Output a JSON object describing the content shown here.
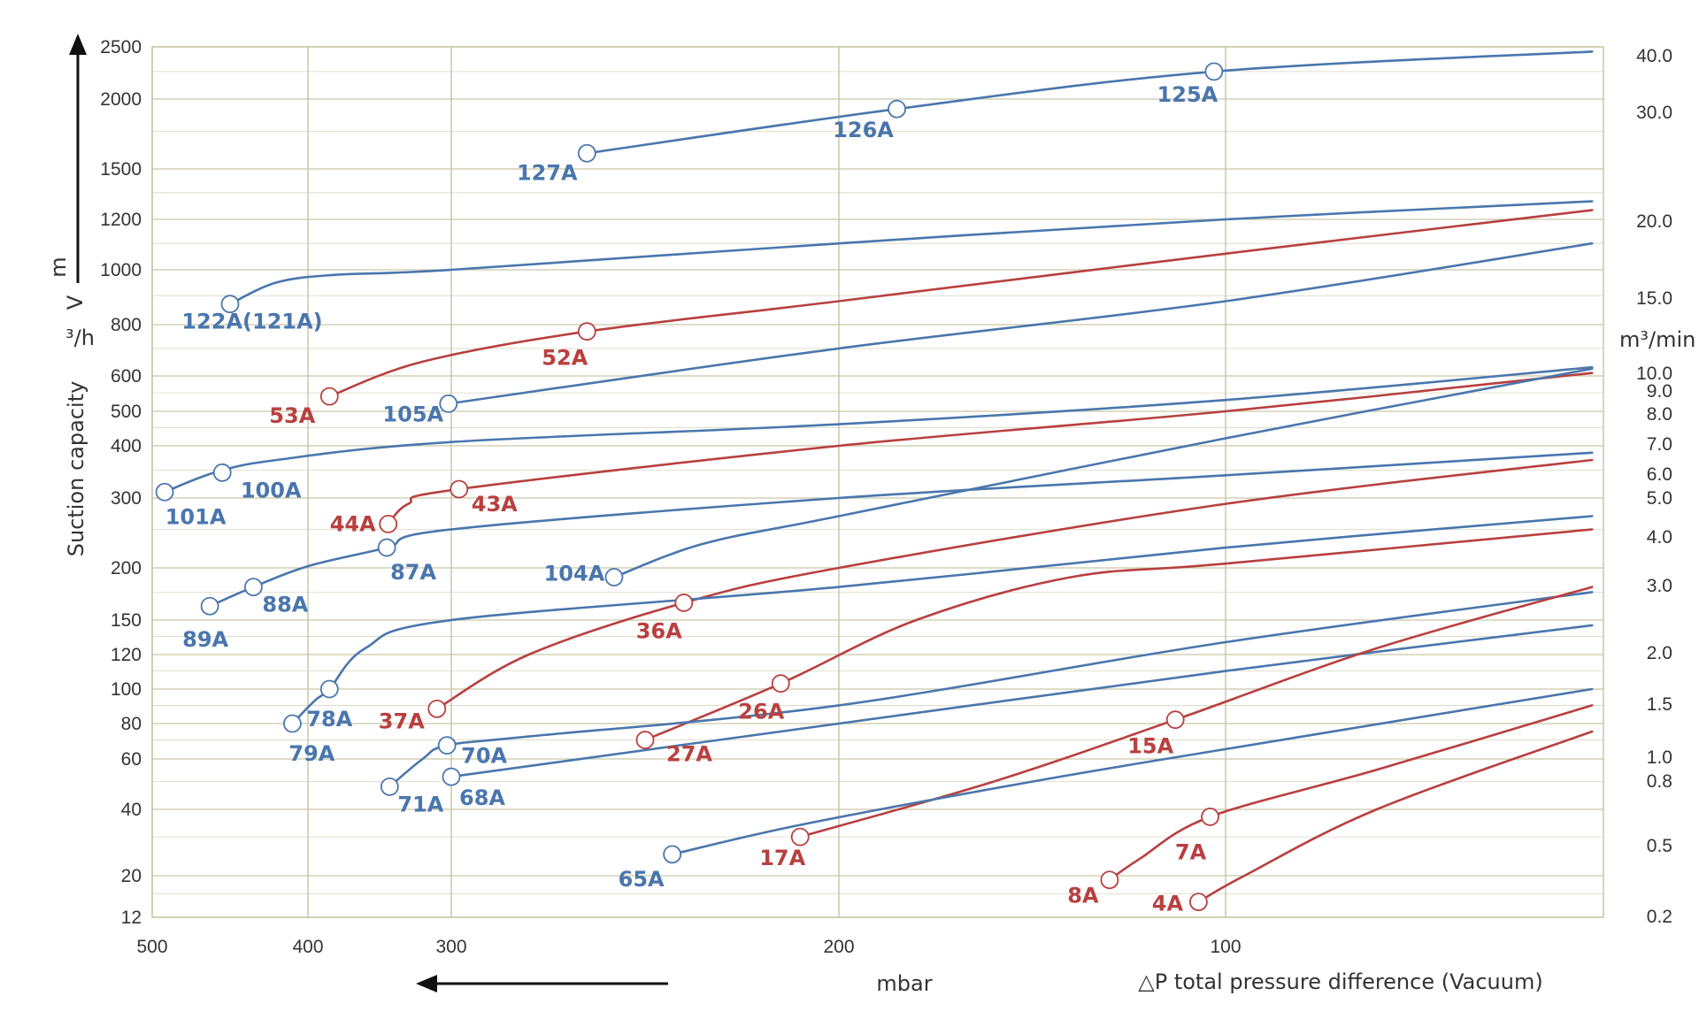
{
  "chart_data": {
    "type": "line",
    "title": "",
    "ylabel_lines": [
      "Suction capacity",
      "V",
      "m",
      "³/h"
    ],
    "ylabel_right": "m³/min",
    "xlabel_unit": "mbar",
    "xlabel": "△P total pressure difference (Vacuum)",
    "x_ticks": [
      500,
      400,
      300,
      200,
      100
    ],
    "y_ticks_left": [
      2500,
      2000,
      1500,
      1200,
      1000,
      800,
      600,
      500,
      400,
      300,
      200,
      150,
      120,
      100,
      80,
      60,
      40,
      20,
      12
    ],
    "y_ticks_right": [
      40.0,
      30.0,
      20.0,
      15.0,
      10.0,
      9.0,
      8.0,
      7.0,
      6.0,
      5.0,
      4.0,
      3.0,
      2.0,
      1.5,
      1.0,
      0.8,
      0.5,
      0.2
    ],
    "y_ticks_right_labels": [
      "40.0",
      "30.0",
      "20.0",
      "15.0",
      "10.0",
      "9.0",
      "8.0",
      "7.0",
      "6.0",
      "5.0",
      "4.0",
      "3.0",
      "2.0",
      "1.5",
      "1.0",
      "0.8",
      "0.5",
      "0.2"
    ],
    "grid": true,
    "colors": {
      "blue": "#4a76ad",
      "red": "#b8403f",
      "grid": "#c9c8a8",
      "axis": "#333333"
    },
    "series": [
      {
        "color": "blue",
        "points": [
          [
            265,
            1600
          ],
          [
            185,
            1920
          ],
          [
            103,
            2250
          ],
          [
            3,
            2450
          ]
        ],
        "markers": [
          {
            "label": "127A",
            "x": 265,
            "y": 1600
          },
          {
            "label": "126A",
            "x": 185,
            "y": 1920
          },
          {
            "label": "125A",
            "x": 103,
            "y": 2250
          }
        ]
      },
      {
        "color": "blue",
        "points": [
          [
            450,
            870
          ],
          [
            420,
            950
          ],
          [
            380,
            980
          ],
          [
            300,
            1000
          ],
          [
            200,
            1100
          ],
          [
            100,
            1200
          ],
          [
            3,
            1300
          ]
        ],
        "markers": [
          {
            "label": "122A(121A)",
            "x": 450,
            "y": 870
          }
        ]
      },
      {
        "color": "red",
        "points": [
          [
            385,
            540
          ],
          [
            320,
            650
          ],
          [
            265,
            770
          ],
          [
            200,
            880
          ],
          [
            100,
            1060
          ],
          [
            3,
            1250
          ]
        ],
        "markers": [
          {
            "label": "53A",
            "x": 385,
            "y": 540
          },
          {
            "label": "52A",
            "x": 265,
            "y": 770
          }
        ]
      },
      {
        "color": "blue",
        "points": [
          [
            302,
            520
          ],
          [
            200,
            700
          ],
          [
            100,
            880
          ],
          [
            3,
            1100
          ]
        ],
        "markers": [
          {
            "label": "105A",
            "x": 302,
            "y": 520
          }
        ]
      },
      {
        "color": "blue",
        "points": [
          [
            492,
            310
          ],
          [
            460,
            345
          ],
          [
            420,
            370
          ],
          [
            300,
            410
          ],
          [
            200,
            460
          ],
          [
            100,
            530
          ],
          [
            3,
            630
          ]
        ],
        "markers": [
          {
            "label": "101A",
            "x": 492,
            "y": 310
          },
          {
            "label": "100A",
            "x": 455,
            "y": 345
          }
        ]
      },
      {
        "color": "red",
        "points": [
          [
            344,
            258
          ],
          [
            330,
            290
          ],
          [
            298,
            315
          ],
          [
            200,
            400
          ],
          [
            100,
            500
          ],
          [
            3,
            610
          ]
        ],
        "markers": [
          {
            "label": "44A",
            "x": 344,
            "y": 258
          },
          {
            "label": "43A",
            "x": 298,
            "y": 315
          }
        ]
      },
      {
        "color": "blue",
        "points": [
          [
            463,
            162
          ],
          [
            435,
            180
          ],
          [
            400,
            202
          ],
          [
            345,
            225
          ],
          [
            300,
            250
          ],
          [
            200,
            300
          ],
          [
            100,
            340
          ],
          [
            3,
            385
          ]
        ],
        "markers": [
          {
            "label": "89A",
            "x": 463,
            "y": 162
          },
          {
            "label": "88A",
            "x": 435,
            "y": 180
          },
          {
            "label": "87A",
            "x": 345,
            "y": 225
          }
        ]
      },
      {
        "color": "blue",
        "points": [
          [
            258,
            190
          ],
          [
            235,
            230
          ],
          [
            200,
            270
          ],
          [
            100,
            420
          ],
          [
            3,
            625
          ]
        ],
        "markers": [
          {
            "label": "104A",
            "x": 258,
            "y": 190
          }
        ]
      },
      {
        "color": "red",
        "points": [
          [
            310,
            88
          ],
          [
            280,
            120
          ],
          [
            240,
            165
          ],
          [
            200,
            200
          ],
          [
            100,
            290
          ],
          [
            3,
            370
          ]
        ],
        "markers": [
          {
            "label": "37A",
            "x": 310,
            "y": 88
          },
          {
            "label": "36A",
            "x": 240,
            "y": 165
          }
        ]
      },
      {
        "color": "blue",
        "points": [
          [
            410,
            80
          ],
          [
            395,
            93
          ],
          [
            385,
            100
          ],
          [
            360,
            125
          ],
          [
            300,
            150
          ],
          [
            200,
            180
          ],
          [
            100,
            225
          ],
          [
            3,
            270
          ]
        ],
        "markers": [
          {
            "label": "79A",
            "x": 410,
            "y": 80
          },
          {
            "label": "78A",
            "x": 385,
            "y": 100
          }
        ]
      },
      {
        "color": "red",
        "points": [
          [
            250,
            70
          ],
          [
            215,
            103
          ],
          [
            180,
            150
          ],
          [
            140,
            190
          ],
          [
            100,
            205
          ],
          [
            3,
            250
          ]
        ],
        "markers": [
          {
            "label": "27A",
            "x": 250,
            "y": 70
          },
          {
            "label": "26A",
            "x": 215,
            "y": 103
          }
        ]
      },
      {
        "color": "blue",
        "points": [
          [
            343,
            48
          ],
          [
            320,
            60
          ],
          [
            303,
            67
          ],
          [
            280,
            72
          ],
          [
            200,
            90
          ],
          [
            100,
            130
          ],
          [
            3,
            175
          ]
        ],
        "markers": [
          {
            "label": "71A",
            "x": 343,
            "y": 48
          },
          {
            "label": "70A",
            "x": 303,
            "y": 67
          }
        ]
      },
      {
        "color": "blue",
        "points": [
          [
            300,
            52
          ],
          [
            200,
            80
          ],
          [
            100,
            110
          ],
          [
            3,
            145
          ]
        ],
        "markers": [
          {
            "label": "68A",
            "x": 300,
            "y": 52
          }
        ]
      },
      {
        "color": "red",
        "points": [
          [
            210,
            30
          ],
          [
            160,
            50
          ],
          [
            113,
            82
          ],
          [
            60,
            125
          ],
          [
            3,
            180
          ]
        ],
        "markers": [
          {
            "label": "17A",
            "x": 210,
            "y": 30
          },
          {
            "label": "15A",
            "x": 113,
            "y": 82
          }
        ]
      },
      {
        "color": "blue",
        "points": [
          [
            243,
            25
          ],
          [
            210,
            34
          ],
          [
            150,
            50
          ],
          [
            100,
            65
          ],
          [
            3,
            100
          ]
        ],
        "markers": [
          {
            "label": "65A",
            "x": 243,
            "y": 25
          }
        ]
      },
      {
        "color": "red",
        "points": [
          [
            130,
            19
          ],
          [
            122,
            24
          ],
          [
            104,
            37
          ],
          [
            60,
            55
          ],
          [
            3,
            90
          ]
        ],
        "markers": [
          {
            "label": "8A",
            "x": 130,
            "y": 19
          },
          {
            "label": "7A",
            "x": 104,
            "y": 37
          }
        ]
      },
      {
        "color": "red",
        "points": [
          [
            107,
            14.5
          ],
          [
            95,
            20
          ],
          [
            60,
            40
          ],
          [
            3,
            75
          ]
        ],
        "markers": [
          {
            "label": "4A",
            "x": 107,
            "y": 14.5
          }
        ]
      }
    ]
  }
}
